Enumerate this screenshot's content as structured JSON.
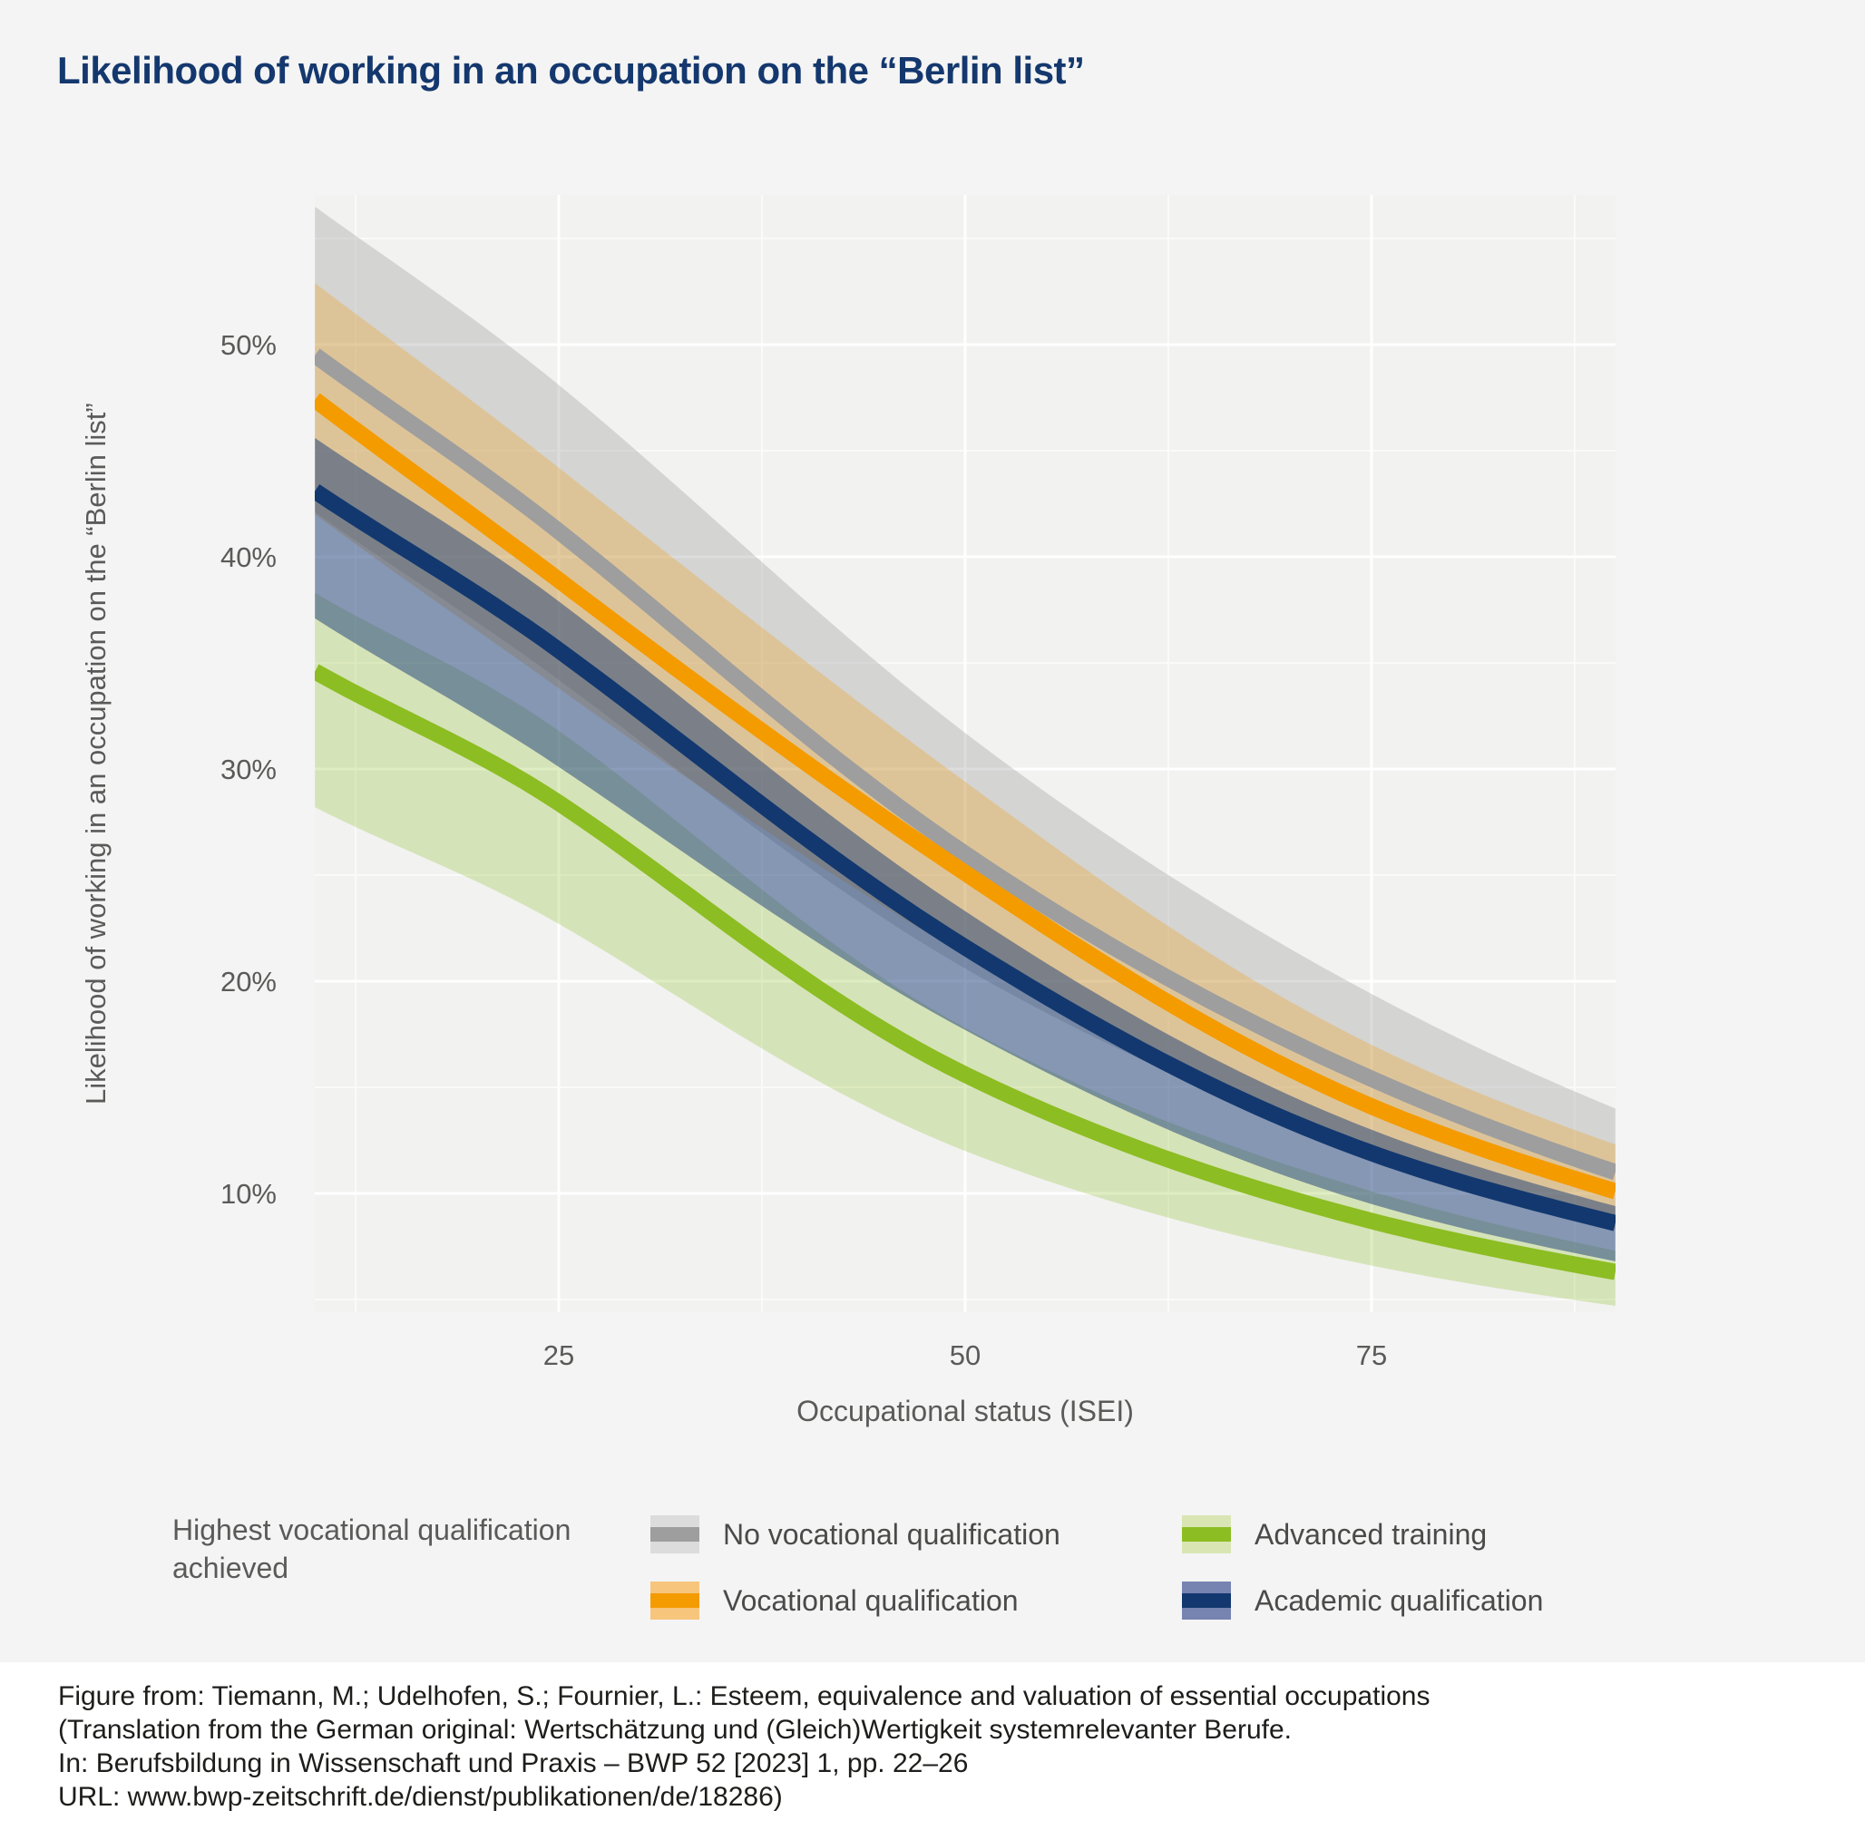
{
  "title": "Likelihood of working in an occupation on the “Berlin list”",
  "chart_data": {
    "type": "line",
    "title": "Likelihood of working in an occupation on the “Berlin list”",
    "xlabel": "Occupational status (ISEI)",
    "ylabel": "Likelihood of working in an occupation on the “Berlin list”",
    "xlim": [
      10,
      90
    ],
    "ylim": [
      4.4,
      57
    ],
    "grid": true,
    "legend_position": "bottom",
    "legend_title": "Highest vocational qualification achieved",
    "x": [
      10,
      25,
      50,
      75,
      90
    ],
    "x_ticks": [
      {
        "label": "25",
        "value": 25
      },
      {
        "label": "50",
        "value": 50
      },
      {
        "label": "75",
        "value": 75
      }
    ],
    "y_ticks": [
      {
        "label": "50%",
        "value": 50
      },
      {
        "label": "40%",
        "value": 40
      },
      {
        "label": "30%",
        "value": 30
      },
      {
        "label": "20%",
        "value": 20
      },
      {
        "label": "10%",
        "value": 10
      }
    ],
    "x_minor_gridlines": [
      12.5,
      37.5,
      62.5,
      87.5
    ],
    "y_minor_gridlines": [
      55,
      45,
      35,
      25,
      15,
      5
    ],
    "series": [
      {
        "name": "No vocational qualification",
        "line_color": "#9e9e9e",
        "band_color": "rgba(150,150,150,0.32)",
        "swatch_light": "#dcdcdc",
        "values": [
          49.5,
          41.2,
          26.0,
          15.4,
          11.0
        ],
        "upper": [
          56.5,
          48.1,
          31.7,
          19.4,
          14.0
        ],
        "lower": [
          42.1,
          34.2,
          20.6,
          11.9,
          8.4
        ]
      },
      {
        "name": "Vocational qualification",
        "line_color": "#f49b00",
        "band_color": "rgba(244,155,0,0.28)",
        "swatch_light": "#f7c57c",
        "values": [
          47.4,
          38.9,
          25.1,
          14.1,
          10.1
        ],
        "upper": [
          52.9,
          44.2,
          29.4,
          17.0,
          12.3
        ],
        "lower": [
          42.0,
          33.8,
          21.2,
          11.6,
          8.3
        ]
      },
      {
        "name": "Advanced training",
        "line_color": "#8cbd22",
        "band_color": "rgba(141,190,35,0.28)",
        "swatch_light": "#d9e6b4",
        "values": [
          34.6,
          28.4,
          15.6,
          8.7,
          6.3
        ],
        "upper": [
          38.3,
          31.8,
          17.8,
          10.1,
          7.3
        ],
        "lower": [
          28.2,
          22.7,
          12.0,
          6.6,
          4.7
        ]
      },
      {
        "name": "Academic qualification",
        "line_color": "#12386f",
        "band_color": "rgba(25,60,120,0.50)",
        "swatch_light": "#7783b0",
        "values": [
          43.1,
          35.6,
          21.6,
          11.9,
          8.6
        ],
        "upper": [
          45.6,
          37.9,
          23.3,
          13.0,
          9.4
        ],
        "lower": [
          37.1,
          30.1,
          17.7,
          9.5,
          6.8
        ]
      }
    ]
  },
  "footer": {
    "lines": [
      "Figure from: Tiemann, M.; Udelhofen, S.; Fournier, L.: Esteem, equivalence and valuation of essential occupations",
      "(Translation from the German original: Wertschätzung und (Gleich)Wertigkeit systemrelevanter Berufe.",
      "In: Berufsbildung in Wissenschaft und Praxis – BWP 52 [2023] 1, pp. 22–26",
      "URL: www.bwp-zeitschrift.de/dienst/publikationen/de/18286)"
    ]
  }
}
